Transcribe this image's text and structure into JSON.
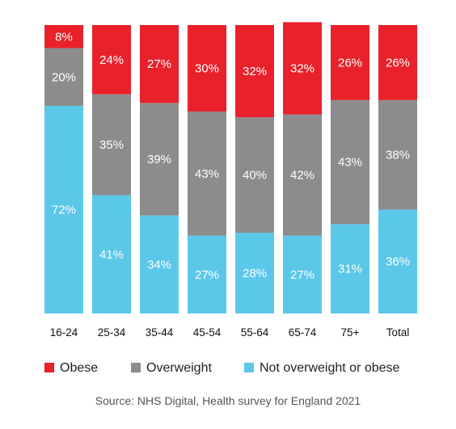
{
  "chart_data": {
    "type": "bar",
    "stacked": true,
    "categories": [
      "16-24",
      "25-34",
      "35-44",
      "45-54",
      "55-64",
      "65-74",
      "75+",
      "Total"
    ],
    "series": [
      {
        "name": "Not overweight or obese",
        "color": "#5bc8ea",
        "values": [
          72,
          41,
          34,
          27,
          28,
          27,
          31,
          36
        ]
      },
      {
        "name": "Overweight",
        "color": "#8c8c8c",
        "values": [
          20,
          35,
          39,
          43,
          40,
          42,
          43,
          38
        ]
      },
      {
        "name": "Obese",
        "color": "#e8212b",
        "values": [
          8,
          24,
          27,
          30,
          32,
          32,
          26,
          26
        ]
      }
    ],
    "value_suffix": "%",
    "ylim": [
      0,
      100
    ],
    "grid": false,
    "legend": {
      "placement": "bottom",
      "order": [
        "Obese",
        "Overweight",
        "Not overweight or obese"
      ]
    },
    "source": "Source: NHS Digital, Health survey for England 2021"
  }
}
